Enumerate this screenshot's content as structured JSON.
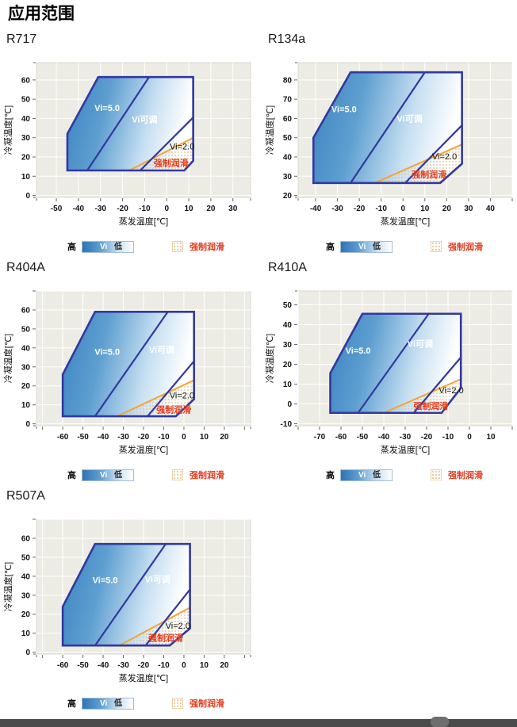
{
  "page_title": "应用范围",
  "axes": {
    "x_label": "蒸发温度[℃]",
    "y_label": "冷凝温度[℃]"
  },
  "legend": {
    "high": "高",
    "vi": "Vi",
    "low": "低",
    "forced": "强制润滑"
  },
  "colors": {
    "outline": "#3238A0",
    "fill_start": "#3B82C0",
    "fill_mid": "#5E9FD0",
    "fill_light": "#C8E0F2",
    "fill_end": "#FFFFFF",
    "orange_line": "#F2A437",
    "forced_text": "#E63C1E",
    "plot_bg": "#ECECE5",
    "plot_border": "#D9D9D0",
    "grid": "#FFFFFF",
    "tick": "#666666",
    "tick_text": "#111111",
    "dot": "#E4BF85",
    "bottom_bar": "#4B4B4B",
    "bottom_pill": "#6E6E6E"
  },
  "chart_data": [
    {
      "type": "area",
      "title": "R717",
      "xlabel": "蒸发温度[℃]",
      "ylabel": "冷凝温度[℃]",
      "xlim": [
        -59,
        38
      ],
      "ylim": [
        -1,
        69
      ],
      "xticks": [
        -50,
        -40,
        -30,
        -20,
        -10,
        0,
        10,
        20,
        30
      ],
      "yticks": [
        0,
        10,
        20,
        30,
        40,
        50,
        60
      ],
      "envelope": [
        [
          -45,
          13
        ],
        [
          -45,
          32
        ],
        [
          -31,
          61.5
        ],
        [
          12,
          61.5
        ],
        [
          12,
          18
        ],
        [
          8,
          13
        ]
      ],
      "vi5_boundary": [
        [
          -36,
          13
        ],
        [
          -8,
          61.5
        ]
      ],
      "vi2_boundary": [
        [
          -12,
          13
        ],
        [
          12,
          40.5
        ]
      ],
      "forced_lubrication_boundary": [
        [
          -17,
          13
        ],
        [
          12,
          30
        ]
      ],
      "forced_lubrication_area": [
        [
          -17,
          13
        ],
        [
          12,
          30
        ],
        [
          12,
          18
        ],
        [
          8,
          13
        ]
      ],
      "annotations": [
        {
          "text": "Vi=5.0",
          "x": -27,
          "y": 45.5,
          "style": "white"
        },
        {
          "text": "Vi可调",
          "x": -10,
          "y": 39.5,
          "style": "white"
        },
        {
          "text": "Vi=2.0",
          "x": 7,
          "y": 25.5,
          "style": "dark"
        },
        {
          "text": "强制润滑",
          "x": 2,
          "y": 17,
          "style": "red"
        }
      ]
    },
    {
      "type": "area",
      "title": "R134a",
      "xlabel": "蒸发温度[℃]",
      "ylabel": "冷凝温度[℃]",
      "xlim": [
        -48,
        50
      ],
      "ylim": [
        19,
        89
      ],
      "xticks": [
        -40,
        -30,
        -20,
        -10,
        0,
        10,
        20,
        30,
        40
      ],
      "yticks": [
        20,
        30,
        40,
        50,
        60,
        70,
        80
      ],
      "envelope": [
        [
          -41,
          26.5
        ],
        [
          -41,
          50
        ],
        [
          -24,
          84
        ],
        [
          27,
          84
        ],
        [
          27,
          36.5
        ],
        [
          17,
          26.5
        ]
      ],
      "vi5_boundary": [
        [
          -24,
          26.5
        ],
        [
          10,
          84
        ]
      ],
      "vi2_boundary": [
        [
          1,
          26.5
        ],
        [
          27,
          56.5
        ]
      ],
      "forced_lubrication_boundary": [
        [
          -13,
          26.5
        ],
        [
          27,
          46.5
        ]
      ],
      "forced_lubrication_area": [
        [
          -13,
          26.5
        ],
        [
          27,
          46.5
        ],
        [
          27,
          36.5
        ],
        [
          17,
          26.5
        ]
      ],
      "annotations": [
        {
          "text": "Vi=5.0",
          "x": -27,
          "y": 65,
          "style": "white"
        },
        {
          "text": "Vi可调",
          "x": 3,
          "y": 60,
          "style": "white"
        },
        {
          "text": "Vi=2.0",
          "x": 19,
          "y": 40.5,
          "style": "dark"
        },
        {
          "text": "强制润滑",
          "x": 12,
          "y": 31,
          "style": "red"
        }
      ]
    },
    {
      "type": "area",
      "title": "R404A",
      "xlabel": "蒸发温度[℃]",
      "ylabel": "冷凝温度[℃]",
      "xlim": [
        -73,
        33
      ],
      "ylim": [
        -1,
        70
      ],
      "xticks": [
        -60,
        -50,
        -40,
        -30,
        -20,
        -10,
        0,
        10,
        20
      ],
      "yticks": [
        0,
        10,
        20,
        30,
        40,
        50,
        60
      ],
      "envelope": [
        [
          -60,
          4
        ],
        [
          -60,
          26
        ],
        [
          -44,
          59
        ],
        [
          5,
          59
        ],
        [
          5,
          13
        ],
        [
          -4,
          4
        ]
      ],
      "vi5_boundary": [
        [
          -44,
          4
        ],
        [
          -8,
          59
        ]
      ],
      "vi2_boundary": [
        [
          -18,
          4
        ],
        [
          5,
          33
        ]
      ],
      "forced_lubrication_boundary": [
        [
          -33,
          4
        ],
        [
          5,
          23
        ]
      ],
      "forced_lubrication_area": [
        [
          -33,
          4
        ],
        [
          5,
          23
        ],
        [
          5,
          13
        ],
        [
          -4,
          4
        ]
      ],
      "annotations": [
        {
          "text": "Vi=5.0",
          "x": -38,
          "y": 38,
          "style": "white"
        },
        {
          "text": "Vi可调",
          "x": -11,
          "y": 39,
          "style": "white"
        },
        {
          "text": "Vi=2.0",
          "x": -1,
          "y": 15,
          "style": "dark"
        },
        {
          "text": "强制润滑",
          "x": -5,
          "y": 7.5,
          "style": "red"
        }
      ]
    },
    {
      "type": "area",
      "title": "R410A",
      "xlabel": "蒸发温度[℃]",
      "ylabel": "冷凝温度[℃]",
      "xlim": [
        -80,
        20
      ],
      "ylim": [
        -11,
        57
      ],
      "xticks": [
        -70,
        -60,
        -50,
        -40,
        -30,
        -20,
        -10,
        0,
        10
      ],
      "yticks": [
        -10,
        0,
        10,
        20,
        30,
        40,
        50
      ],
      "envelope": [
        [
          -65,
          -4.5
        ],
        [
          -65,
          15.5
        ],
        [
          -50,
          45.5
        ],
        [
          -4,
          45.5
        ],
        [
          -4,
          8
        ],
        [
          -13,
          -4.5
        ]
      ],
      "vi5_boundary": [
        [
          -52,
          -4.5
        ],
        [
          -19,
          45.5
        ]
      ],
      "vi2_boundary": [
        [
          -26,
          -4.5
        ],
        [
          -4,
          23.5
        ]
      ],
      "forced_lubrication_boundary": [
        [
          -40,
          -4.5
        ],
        [
          -4,
          12.5
        ]
      ],
      "forced_lubrication_area": [
        [
          -40,
          -4.5
        ],
        [
          -4,
          12.5
        ],
        [
          -4,
          8
        ],
        [
          -13,
          -4.5
        ]
      ],
      "annotations": [
        {
          "text": "Vi=5.0",
          "x": -52,
          "y": 27,
          "style": "white"
        },
        {
          "text": "Vi可调",
          "x": -23,
          "y": 30.5,
          "style": "white"
        },
        {
          "text": "Vi=2.0",
          "x": -8.5,
          "y": 7,
          "style": "dark"
        },
        {
          "text": "强制润滑",
          "x": -18,
          "y": -1,
          "style": "red"
        }
      ]
    },
    {
      "type": "area",
      "title": "R507A",
      "xlabel": "蒸发温度[℃]",
      "ylabel": "冷凝温度[℃]",
      "xlim": [
        -73,
        33
      ],
      "ylim": [
        -1,
        70
      ],
      "xticks": [
        -60,
        -50,
        -40,
        -30,
        -20,
        -10,
        0,
        10,
        20
      ],
      "yticks": [
        0,
        10,
        20,
        30,
        40,
        50,
        60
      ],
      "envelope": [
        [
          -60,
          3.5
        ],
        [
          -60,
          24
        ],
        [
          -44,
          57
        ],
        [
          3,
          57
        ],
        [
          3,
          12.5
        ],
        [
          -7,
          3.5
        ]
      ],
      "vi5_boundary": [
        [
          -44,
          3.5
        ],
        [
          -9,
          57
        ]
      ],
      "vi2_boundary": [
        [
          -19,
          3.5
        ],
        [
          3,
          33
        ]
      ],
      "forced_lubrication_boundary": [
        [
          -32,
          3.5
        ],
        [
          3,
          23.5
        ]
      ],
      "forced_lubrication_area": [
        [
          -32,
          3.5
        ],
        [
          3,
          23.5
        ],
        [
          3,
          12.5
        ],
        [
          -7,
          3.5
        ]
      ],
      "annotations": [
        {
          "text": "Vi=5.0",
          "x": -39,
          "y": 38,
          "style": "white"
        },
        {
          "text": "Vi可调",
          "x": -13,
          "y": 38.5,
          "style": "white"
        },
        {
          "text": "Vi=2.0",
          "x": -3,
          "y": 14,
          "style": "dark"
        },
        {
          "text": "强制润滑",
          "x": -9,
          "y": 7.5,
          "style": "red"
        }
      ]
    }
  ]
}
